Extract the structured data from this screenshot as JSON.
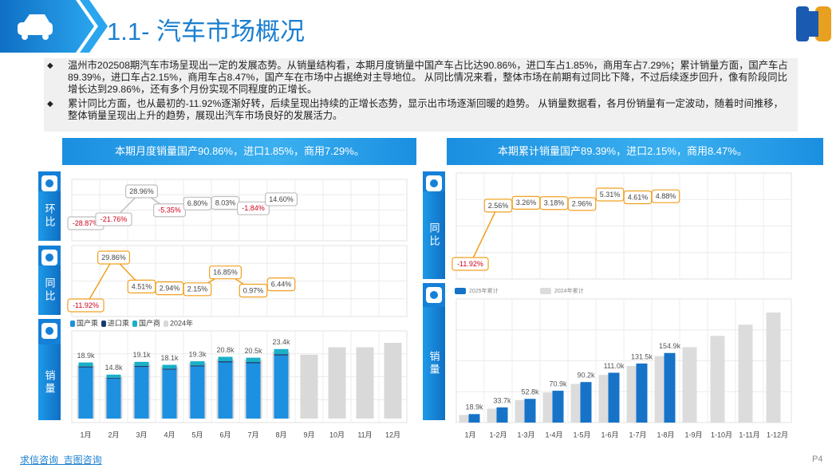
{
  "header": {
    "title": "1.1- 汽车市场概况"
  },
  "bullets": [
    "温州市202508期汽车市场呈现出一定的发展态势。从销量结构看，本期月度销量中国产车占比达90.86%，进口车占1.85%，商用车占7.29%；累计销量方面，国产车占89.39%，进口车占2.15%，商用车占8.47%，国产车在市场中占据绝对主导地位。 从同比情况来看，整体市场在前期有过同比下降，不过后续逐步回升，像有阶段同比增长达到29.86%，还有多个月份实现不同程度的正增长。",
    "累计同比方面，也从最初的-11.92%逐渐好转，后续呈现出持续的正增长态势，显示出市场逐渐回暖的趋势。 从销量数据看，各月份销量有一定波动，随着时间推移，整体销量呈现出上升的趋势，展现出汽车市场良好的发展活力。"
  ],
  "captions": [
    "本期月度销量国产90.86%，进口1.85%，商用7.29%。",
    "本期累计销量国产89.39%，进口2.15%，商用8.47%。"
  ],
  "footer": {
    "brand": "求信咨询  吉图咨询",
    "page": "P4"
  },
  "chart_data": [
    {
      "type": "line",
      "title": "环比",
      "color": "#bfbfbf",
      "negative_color": "#d0021b",
      "values": [
        -28.87,
        -21.76,
        28.96,
        -5.35,
        6.8,
        8.03,
        -1.84,
        14.6
      ],
      "value_labels": [
        "-28.87%",
        "-21.76%",
        "28.96%",
        "-5.35%",
        "6.80%",
        "8.03%",
        "-1.84%",
        "14.60%"
      ]
    },
    {
      "type": "line",
      "title": "同比",
      "color": "#f0a020",
      "negative_color": "#d0021b",
      "values": [
        -11.92,
        29.86,
        4.51,
        2.94,
        2.15,
        16.85,
        0.97,
        6.44
      ],
      "value_labels": [
        "-11.92%",
        "29.86%",
        "4.51%",
        "2.94%",
        "2.15%",
        "16.85%",
        "0.97%",
        "6.44%"
      ]
    },
    {
      "type": "bar",
      "title": "销量",
      "barmode": "stack",
      "categories": [
        "1月",
        "2月",
        "3月",
        "4月",
        "5月",
        "6月",
        "7月",
        "8月",
        "9月",
        "10月",
        "11月",
        "12月"
      ],
      "series": [
        {
          "name": "国产乘",
          "color": "#1e90e0",
          "values": [
            17200,
            13450,
            17380,
            16470,
            17560,
            18930,
            18650,
            21260,
            null,
            null,
            null,
            null
          ]
        },
        {
          "name": "进口乘",
          "color": "#1a3a6e",
          "values": [
            350,
            270,
            350,
            330,
            360,
            380,
            380,
            430,
            null,
            null,
            null,
            null
          ]
        },
        {
          "name": "国产商",
          "color": "#1ab0c8",
          "values": [
            1350,
            1080,
            1370,
            1300,
            1380,
            1490,
            1470,
            1710,
            null,
            null,
            null,
            null
          ]
        }
      ],
      "comparison": {
        "name": "2024年",
        "color": "#d9d9d9",
        "values": [
          18000,
          14000,
          18500,
          17500,
          18800,
          20000,
          19800,
          22500,
          21500,
          24000,
          24000,
          25500
        ]
      },
      "total_labels": [
        "18.9k",
        "14.8k",
        "19.1k",
        "18.1k",
        "19.3k",
        "20.8k",
        "20.5k",
        "23.4k",
        null,
        null,
        null,
        null
      ]
    },
    {
      "type": "line",
      "title": "同比",
      "color": "#f0a020",
      "negative_color": "#d0021b",
      "values": [
        -11.92,
        2.56,
        3.26,
        3.18,
        2.96,
        5.31,
        4.61,
        4.88
      ],
      "value_labels": [
        "-11.92%",
        "2.56%",
        "3.26%",
        "3.18%",
        "2.96%",
        "5.31%",
        "4.61%",
        "4.88%"
      ]
    },
    {
      "type": "bar",
      "title": "销量",
      "barmode": "group",
      "categories": [
        "1月",
        "1-2月",
        "1-3月",
        "1-4月",
        "1-5月",
        "1-6月",
        "1-7月",
        "1-8月",
        "1-9月",
        "1-10月",
        "1-11月",
        "1-12月"
      ],
      "series": [
        {
          "name": "2025年累计",
          "color": "#1673c8",
          "values": [
            18900,
            33700,
            52800,
            70900,
            90200,
            111000,
            131500,
            154900,
            null,
            null,
            null,
            null
          ],
          "value_labels": [
            "18.9k",
            "33.7k",
            "52.8k",
            "70.9k",
            "90.2k",
            "111.0k",
            "131.5k",
            "154.9k",
            null,
            null,
            null,
            null
          ]
        }
      ],
      "comparison": {
        "name": "2024年累计",
        "color": "#dcdcdc",
        "values": [
          17000,
          31000,
          50000,
          67000,
          86000,
          106000,
          126000,
          148000,
          168000,
          193000,
          218000,
          245000
        ]
      }
    }
  ]
}
